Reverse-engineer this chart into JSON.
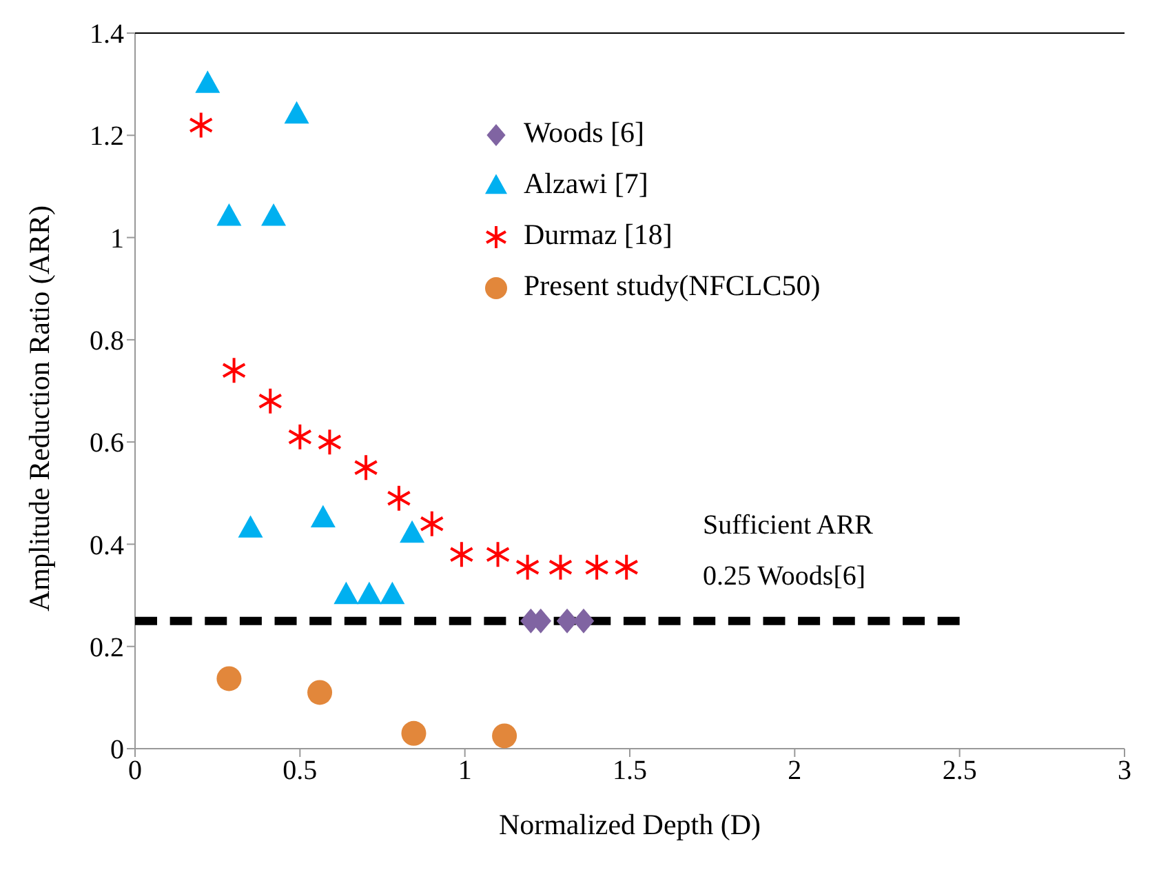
{
  "chart_data": {
    "type": "scatter",
    "xlabel": "Normalized Depth (D)",
    "ylabel": "Amplitude Reduction Ratio (ARR)",
    "xlim": [
      0,
      3
    ],
    "xticks": [
      0,
      0.5,
      1,
      1.5,
      2,
      2.5,
      3
    ],
    "ylim": [
      0,
      1.4
    ],
    "yticks": [
      0,
      0.2,
      0.4,
      0.6,
      0.8,
      1,
      1.2,
      1.4
    ],
    "legend": "top",
    "series": [
      {
        "name": "Woods [6]",
        "color": "#8064a2",
        "marker": "diamond",
        "x": [
          1.2,
          1.23,
          1.31,
          1.36
        ],
        "values": [
          0.25,
          0.25,
          0.25,
          0.25
        ]
      },
      {
        "name": "Alzawi [7]",
        "color": "#00b0f0",
        "marker": "triangle",
        "x": [
          0.22,
          0.49,
          0.285,
          0.42,
          0.35,
          0.57,
          0.84,
          0.64,
          0.71,
          0.78
        ],
        "values": [
          1.3,
          1.24,
          1.04,
          1.04,
          0.43,
          0.45,
          0.42,
          0.3,
          0.3,
          0.3
        ]
      },
      {
        "name": "Durmaz [18]",
        "color": "#ff0000",
        "marker": "cross",
        "x": [
          0.2,
          0.3,
          0.41,
          0.5,
          0.59,
          0.7,
          0.8,
          0.9,
          0.99,
          1.1,
          1.19,
          1.29,
          1.4,
          1.49
        ],
        "values": [
          1.22,
          0.74,
          0.68,
          0.61,
          0.6,
          0.55,
          0.49,
          0.44,
          0.38,
          0.38,
          0.355,
          0.355,
          0.355,
          0.355
        ]
      },
      {
        "name": "Present study(NFCLC50)",
        "color": "#e2873b",
        "marker": "circle",
        "x": [
          0.285,
          0.56,
          0.845,
          1.12
        ],
        "values": [
          0.137,
          0.11,
          0.03,
          0.025
        ]
      },
      {
        "type": "line",
        "color": "#000000",
        "line_style": "dashed",
        "marker": "none",
        "x": [
          0,
          2.5
        ],
        "values": [
          0.25,
          0.25
        ]
      }
    ],
    "annotations": [
      "Sufficient ARR",
      "0.25 Woods[6]"
    ]
  }
}
